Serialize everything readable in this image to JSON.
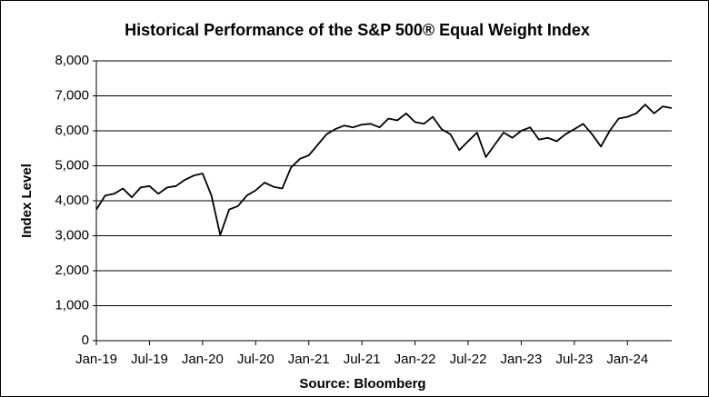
{
  "chart_data": {
    "type": "line",
    "title": "Historical Performance of the S&P 500® Equal Weight Index",
    "x_label": "Source: Bloomberg",
    "y_label": "Index Level",
    "x": [
      "Jan-19",
      "Feb-19",
      "Mar-19",
      "Apr-19",
      "May-19",
      "Jun-19",
      "Jul-19",
      "Aug-19",
      "Sep-19",
      "Oct-19",
      "Nov-19",
      "Dec-19",
      "Jan-20",
      "Feb-20",
      "Mar-20",
      "Apr-20",
      "May-20",
      "Jun-20",
      "Jul-20",
      "Aug-20",
      "Sep-20",
      "Oct-20",
      "Nov-20",
      "Dec-20",
      "Jan-21",
      "Feb-21",
      "Mar-21",
      "Apr-21",
      "May-21",
      "Jun-21",
      "Jul-21",
      "Aug-21",
      "Sep-21",
      "Oct-21",
      "Nov-21",
      "Dec-21",
      "Jan-22",
      "Feb-22",
      "Mar-22",
      "Apr-22",
      "May-22",
      "Jun-22",
      "Jul-22",
      "Aug-22",
      "Sep-22",
      "Oct-22",
      "Nov-22",
      "Dec-22",
      "Jan-23",
      "Feb-23",
      "Mar-23",
      "Apr-23",
      "May-23",
      "Jun-23",
      "Jul-23",
      "Aug-23",
      "Sep-23",
      "Oct-23",
      "Nov-23",
      "Dec-23",
      "Jan-24",
      "Feb-24",
      "Mar-24",
      "Apr-24",
      "May-24",
      "Jun-24"
    ],
    "series": [
      {
        "name": "S&P 500 Equal Weight Index",
        "color": "#000000",
        "values": [
          3750,
          4150,
          4200,
          4350,
          4100,
          4380,
          4420,
          4200,
          4380,
          4420,
          4600,
          4720,
          4780,
          4150,
          3020,
          3750,
          3850,
          4150,
          4300,
          4520,
          4400,
          4350,
          4950,
          5200,
          5300,
          5600,
          5900,
          6050,
          6150,
          6100,
          6180,
          6200,
          6100,
          6350,
          6300,
          6500,
          6250,
          6200,
          6400,
          6050,
          5900,
          5450,
          5700,
          5950,
          5250,
          5600,
          5950,
          5800,
          6000,
          6100,
          5750,
          5800,
          5700,
          5900,
          6050,
          6200,
          5900,
          5550,
          6000,
          6350,
          6400,
          6500,
          6750,
          6500,
          6700,
          6650
        ]
      }
    ],
    "ylim": [
      0,
      8000
    ],
    "yticks": [
      0,
      {
        "value": 1000,
        "label": "1,000"
      },
      {
        "value": 2000,
        "label": "2,000"
      },
      {
        "value": 3000,
        "label": "3,000"
      },
      {
        "value": 4000,
        "label": "4,000"
      },
      {
        "value": 5000,
        "label": "5,000"
      },
      {
        "value": 6000,
        "label": "6,000"
      },
      {
        "value": 7000,
        "label": "7,000"
      },
      {
        "value": 8000,
        "label": "8,000"
      }
    ],
    "xtick_every": 6,
    "grid": true
  }
}
